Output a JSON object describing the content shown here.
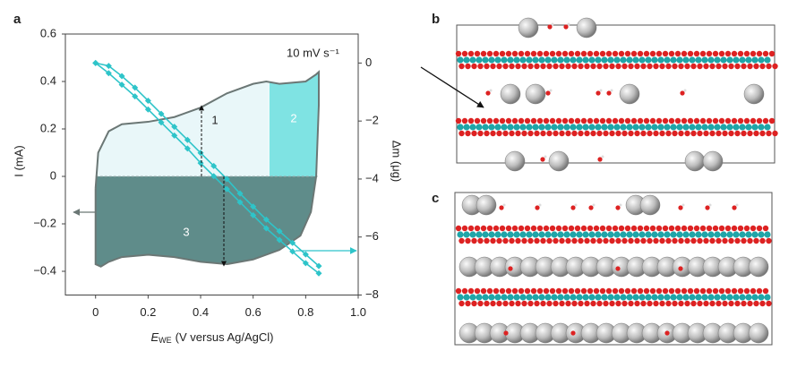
{
  "panel_labels": [
    "a",
    "b",
    "c"
  ],
  "chart_data": {
    "type": "line",
    "annotation": "10 mV s⁻¹",
    "xlabel": {
      "symbol": "E",
      "subscript": "WE",
      "text": "(V versus Ag/AgCl)"
    },
    "ylabel": "I (mA)",
    "y2label": "Δm (μg)",
    "xlim": [
      -0.115,
      1.0
    ],
    "ylim": [
      -0.5,
      0.6
    ],
    "y2lim": [
      -8,
      1
    ],
    "xticks": [
      0,
      0.2,
      0.4,
      0.6,
      0.8,
      {
        "value": 1.0,
        "label": "1.0"
      }
    ],
    "yticks": [
      {
        "value": -0.4,
        "label": "−0.4"
      },
      {
        "value": -0.2,
        "label": "−0.2"
      },
      0,
      0.2,
      0.4,
      0.6
    ],
    "y2ticks": [
      {
        "value": -8,
        "label": "−8"
      },
      {
        "value": -6,
        "label": "−6"
      },
      {
        "value": -4,
        "label": "−4"
      },
      {
        "value": -2,
        "label": "−2"
      },
      0
    ],
    "regions": [
      {
        "label": "1"
      },
      {
        "label": "2",
        "x_from": 0.66
      },
      {
        "label": "3"
      }
    ],
    "series": [
      {
        "color": "#6b7775",
        "x": [
          0.0,
          0.01,
          0.05,
          0.1,
          0.2,
          0.3,
          0.4,
          0.5,
          0.6,
          0.65,
          0.7,
          0.8,
          0.84,
          0.85,
          0.85,
          0.84,
          0.82,
          0.78,
          0.7,
          0.6,
          0.5,
          0.4,
          0.3,
          0.2,
          0.1,
          0.05,
          0.02,
          0.0,
          0.0,
          0.0
        ],
        "values": [
          -0.05,
          0.1,
          0.19,
          0.22,
          0.23,
          0.25,
          0.29,
          0.35,
          0.39,
          0.4,
          0.39,
          0.4,
          0.43,
          0.44,
          0.3,
          0.0,
          -0.15,
          -0.25,
          -0.31,
          -0.35,
          -0.37,
          -0.36,
          -0.34,
          -0.33,
          -0.34,
          -0.36,
          -0.38,
          -0.37,
          -0.2,
          -0.05
        ]
      },
      {
        "color": "#2ec4c9",
        "axis": "y2",
        "x": [
          0,
          0.05,
          0.1,
          0.15,
          0.2,
          0.25,
          0.3,
          0.35,
          0.4,
          0.45,
          0.5,
          0.55,
          0.6,
          0.65,
          0.7,
          0.75,
          0.8,
          0.85
        ],
        "values": [
          0,
          -0.35,
          -0.75,
          -1.15,
          -1.6,
          -2.05,
          -2.5,
          -2.95,
          -3.45,
          -3.9,
          -4.35,
          -4.8,
          -5.25,
          -5.7,
          -6.1,
          -6.5,
          -6.9,
          -7.25
        ]
      },
      {
        "color": "#2ec4c9",
        "axis": "y2",
        "x": [
          0,
          0.05,
          0.1,
          0.15,
          0.2,
          0.25,
          0.3,
          0.35,
          0.4,
          0.45,
          0.5,
          0.55,
          0.6,
          0.65,
          0.7,
          0.75,
          0.8,
          0.85
        ],
        "values": [
          0,
          -0.1,
          -0.45,
          -0.85,
          -1.3,
          -1.75,
          -2.2,
          -2.65,
          -3.1,
          -3.55,
          -4.0,
          -4.5,
          -4.95,
          -5.4,
          -5.8,
          -6.2,
          -6.6,
          -7.0
        ]
      }
    ]
  }
}
